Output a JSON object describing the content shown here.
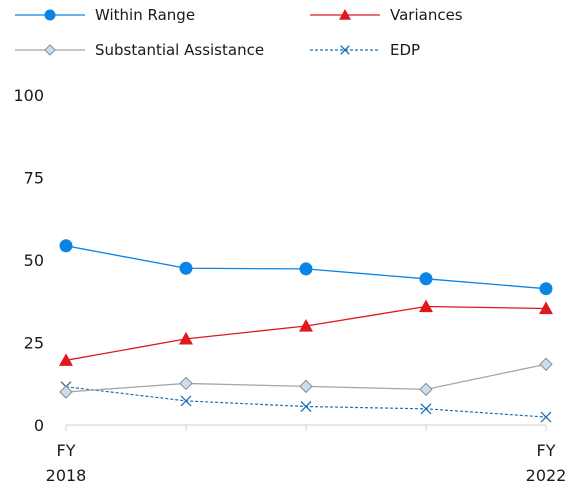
{
  "chart_data": {
    "type": "line",
    "x": [
      "FY 2018",
      "",
      "",
      "",
      "FY 2022"
    ],
    "ylim": [
      0,
      100
    ],
    "yticks": [
      0,
      25,
      50,
      75,
      100
    ],
    "grid": false,
    "legend_position": "top",
    "xtick_labels": [
      {
        "line1": "FY",
        "line2": "2018"
      },
      {
        "line1": "FY",
        "line2": "2022"
      }
    ],
    "series": [
      {
        "name": "Within Range",
        "values": [
          54.3,
          47.5,
          47.3,
          44.3,
          41.3
        ],
        "color": "#0b84e5",
        "marker": "circle",
        "dash": false
      },
      {
        "name": "Variances",
        "values": [
          19.6,
          26.1,
          30.0,
          35.9,
          35.3
        ],
        "color": "#e0191c",
        "marker": "triangle",
        "dash": false
      },
      {
        "name": "Substantial Assistance",
        "values": [
          10.0,
          12.6,
          11.7,
          10.8,
          18.4
        ],
        "color": "#a6a6a6",
        "marker": "diamond",
        "dash": false
      },
      {
        "name": "EDP",
        "values": [
          11.6,
          7.3,
          5.6,
          4.9,
          2.4
        ],
        "color": "#1f6fb5",
        "marker": "x",
        "dash": true
      }
    ]
  }
}
